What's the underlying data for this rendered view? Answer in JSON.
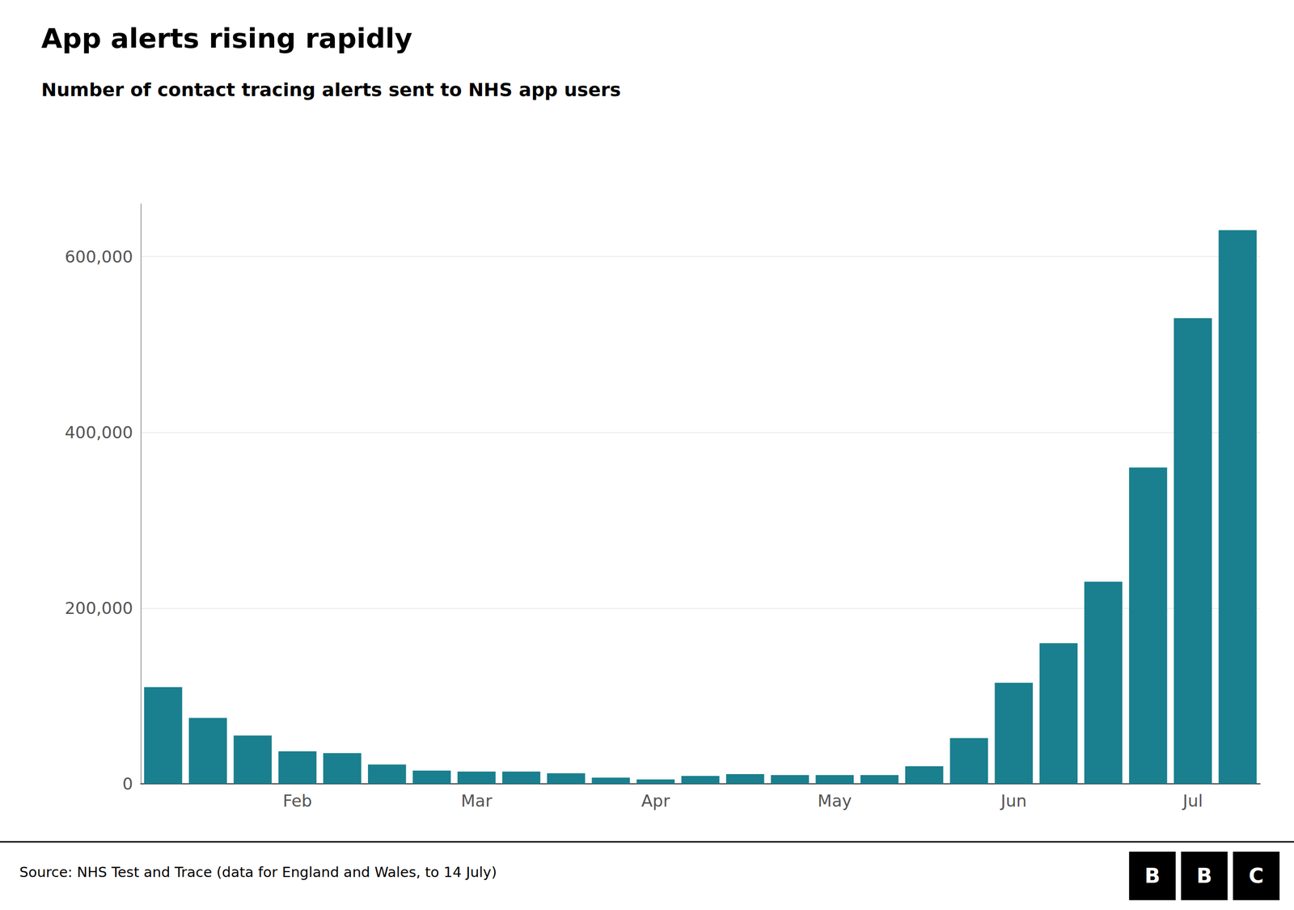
{
  "chart_data": {
    "type": "bar",
    "title": "App alerts rising rapidly",
    "subtitle": "Number of contact tracing alerts sent to NHS app users",
    "source": "Source: NHS Test and Trace (data for England and Wales, to 14 July)",
    "logo": [
      "B",
      "B",
      "C"
    ],
    "categories": [
      null,
      null,
      null,
      "Feb",
      null,
      null,
      null,
      "Mar",
      null,
      null,
      null,
      "Apr",
      null,
      null,
      null,
      "May",
      null,
      null,
      null,
      "Jun",
      null,
      null,
      null,
      "Jul",
      null
    ],
    "values": [
      110000,
      75000,
      55000,
      37000,
      35000,
      22000,
      15000,
      14000,
      14000,
      12000,
      7000,
      5000,
      9000,
      11000,
      10000,
      10000,
      10000,
      20000,
      52000,
      115000,
      160000,
      230000,
      360000,
      530000,
      630000
    ],
    "color": "#1a7f8e",
    "ylim": [
      0,
      660000
    ],
    "yticks": [
      0,
      {
        "value": 200000,
        "label": "200,000"
      },
      {
        "value": 400000,
        "label": "400,000"
      },
      {
        "value": 600000,
        "label": "600,000"
      }
    ],
    "grid": true
  }
}
